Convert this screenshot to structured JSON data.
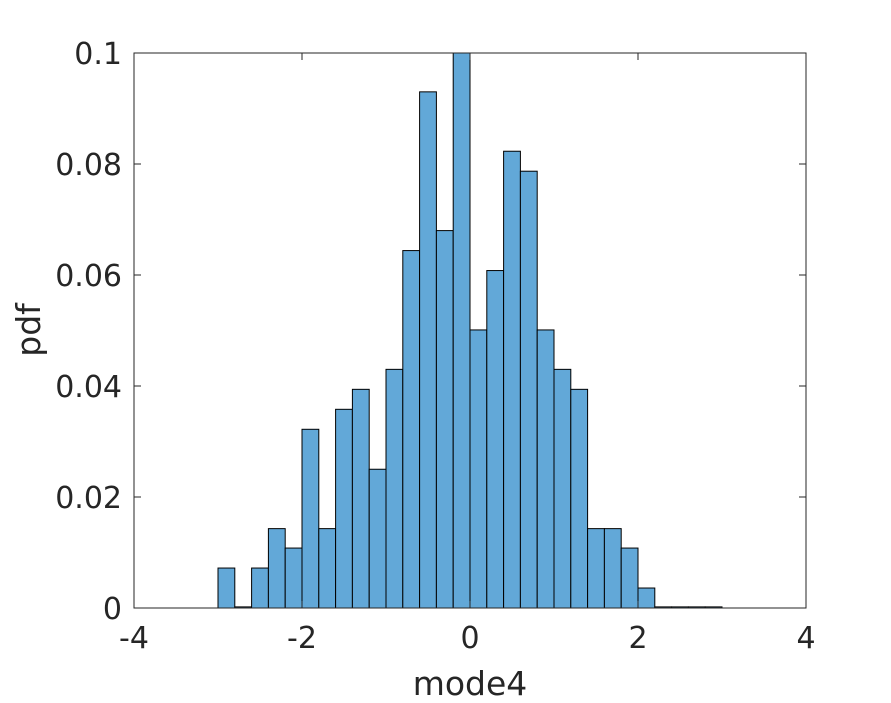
{
  "chart_data": {
    "type": "bar",
    "subtype": "histogram",
    "title": "",
    "xlabel": "mode4",
    "ylabel": "pdf",
    "xlim": [
      -4,
      4
    ],
    "ylim": [
      0,
      0.1
    ],
    "xticks": [
      -4,
      -2,
      0,
      2,
      4
    ],
    "xtick_labels": [
      "-4",
      "-2",
      "0",
      "2",
      "4"
    ],
    "yticks": [
      0,
      0.02,
      0.04,
      0.06,
      0.08,
      0.1
    ],
    "ytick_labels": [
      "0",
      "0.02",
      "0.04",
      "0.06",
      "0.08",
      "0.1"
    ],
    "grid": false,
    "bar_color": "#62a8d8",
    "edge_color": "#000000",
    "bins": [
      {
        "x0": -3.0,
        "x1": -2.8,
        "value": 0.0072
      },
      {
        "x0": -2.8,
        "x1": -2.6,
        "value": 0.0002
      },
      {
        "x0": -2.6,
        "x1": -2.4,
        "value": 0.0072
      },
      {
        "x0": -2.4,
        "x1": -2.2,
        "value": 0.0143
      },
      {
        "x0": -2.2,
        "x1": -2.0,
        "value": 0.0108
      },
      {
        "x0": -2.0,
        "x1": -1.8,
        "value": 0.0322
      },
      {
        "x0": -1.8,
        "x1": -1.6,
        "value": 0.0143
      },
      {
        "x0": -1.6,
        "x1": -1.4,
        "value": 0.0358
      },
      {
        "x0": -1.4,
        "x1": -1.2,
        "value": 0.0394
      },
      {
        "x0": -1.2,
        "x1": -1.0,
        "value": 0.025
      },
      {
        "x0": -1.0,
        "x1": -0.8,
        "value": 0.043
      },
      {
        "x0": -0.8,
        "x1": -0.6,
        "value": 0.0644
      },
      {
        "x0": -0.6,
        "x1": -0.4,
        "value": 0.093
      },
      {
        "x0": -0.4,
        "x1": -0.2,
        "value": 0.068
      },
      {
        "x0": -0.2,
        "x1": 0.0,
        "value": 0.1002
      },
      {
        "x0": 0.0,
        "x1": 0.2,
        "value": 0.0501
      },
      {
        "x0": 0.2,
        "x1": 0.4,
        "value": 0.0608
      },
      {
        "x0": 0.4,
        "x1": 0.6,
        "value": 0.0823
      },
      {
        "x0": 0.6,
        "x1": 0.8,
        "value": 0.0787
      },
      {
        "x0": 0.8,
        "x1": 1.0,
        "value": 0.0501
      },
      {
        "x0": 1.0,
        "x1": 1.2,
        "value": 0.043
      },
      {
        "x0": 1.2,
        "x1": 1.4,
        "value": 0.0394
      },
      {
        "x0": 1.4,
        "x1": 1.6,
        "value": 0.0143
      },
      {
        "x0": 1.6,
        "x1": 1.8,
        "value": 0.0143
      },
      {
        "x0": 1.8,
        "x1": 2.0,
        "value": 0.0108
      },
      {
        "x0": 2.0,
        "x1": 2.2,
        "value": 0.0036
      },
      {
        "x0": 2.2,
        "x1": 2.4,
        "value": 0.0002
      },
      {
        "x0": 2.4,
        "x1": 2.6,
        "value": 0.0002
      },
      {
        "x0": 2.6,
        "x1": 2.8,
        "value": 0.0002
      },
      {
        "x0": 2.8,
        "x1": 3.0,
        "value": 0.0002
      }
    ]
  }
}
